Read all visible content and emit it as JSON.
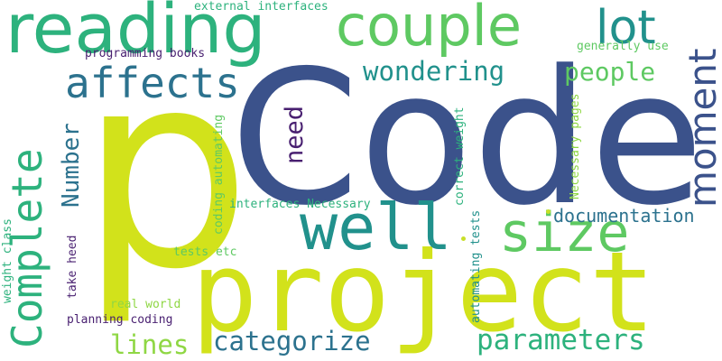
{
  "words": {
    "p": "p",
    "code": "Code",
    "project": "project",
    "reading": "reading",
    "couple": "couple",
    "complete": "Complete",
    "moment": "moment",
    "well": "well",
    "size": "size",
    "lot": "lot",
    "affects": "affects",
    "wondering": "wondering",
    "people": "people",
    "need": "need",
    "number": "Number",
    "documentation": "documentation",
    "categorize": "categorize",
    "parameters": "parameters",
    "lines": "lines",
    "external_interfaces": "external interfaces",
    "programming_books": "programming books",
    "generally_use": "generally use",
    "coding_automating": "coding automating",
    "interfaces_necessary": "interfaces Necessary",
    "correct_weight": "correct weight",
    "automating_tests": "automating tests",
    "necessary_pages": "Necessary pages",
    "weight_class": "weight class",
    "take_heed": "take heed",
    "tests_etc": "tests etc",
    "real_world": "real world",
    "planning_coding": "planning coding"
  },
  "colors": {
    "background": "#ffffff",
    "yellow_green": "#d2e21b",
    "navy": "#3b528b",
    "teal": "#21918c",
    "green": "#2db27d",
    "light_green": "#5ec962",
    "lime": "#8fd744",
    "dark_purple": "#481f70",
    "blue_teal": "#2c728e"
  }
}
